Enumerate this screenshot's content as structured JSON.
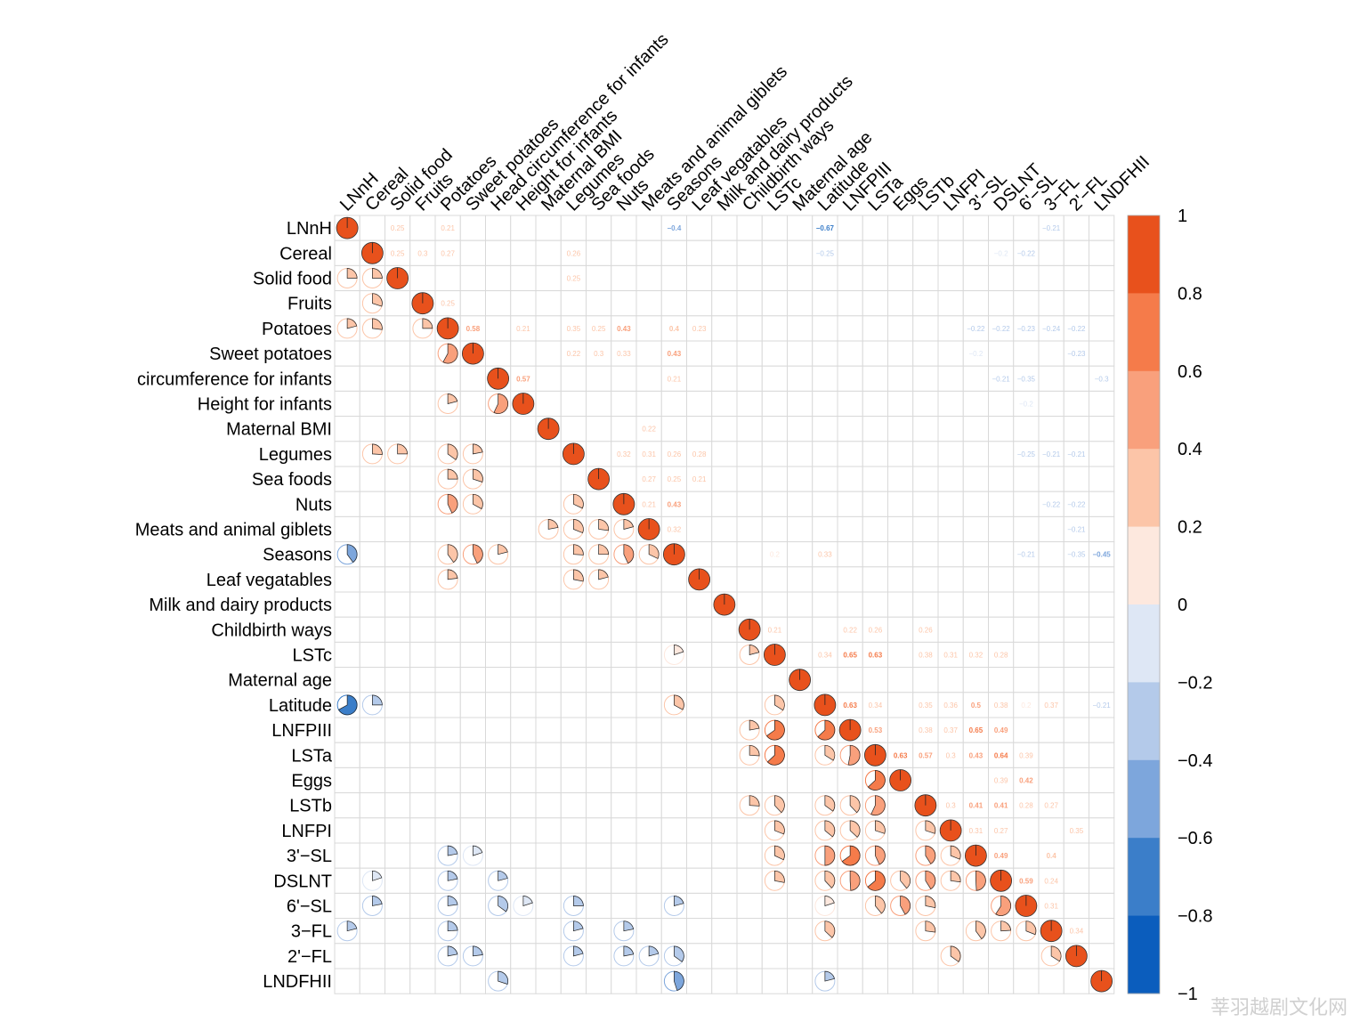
{
  "chart_data": {
    "type": "heatmap",
    "style": "correlation matrix (corrplot mixed: pie glyphs in lower triangle, coefficients in upper triangle)",
    "variables": [
      "LNnH",
      "Cereal",
      "Solid food",
      "Fruits",
      "Potatoes",
      "Sweet potatoes",
      "Head circumference for infants",
      "Height for infants",
      "Maternal BMI",
      "Legumes",
      "Sea foods",
      "Nuts",
      "Meats and animal giblets",
      "Seasons",
      "Leaf vegatables",
      "Milk and dairy products",
      "Childbirth ways",
      "LSTc",
      "Maternal age",
      "Latitude",
      "LNFPIII",
      "LSTa",
      "Eggs",
      "LSTb",
      "LNFPI",
      "3'−SL",
      "DSLNT",
      "6'−SL",
      "3−FL",
      "2'−FL",
      "LNDFHII"
    ],
    "row_labels": [
      "LNnH",
      "Cereal",
      "Solid food",
      "Fruits",
      "Potatoes",
      "Sweet potatoes",
      "circumference for infants",
      "Height for infants",
      "Maternal BMI",
      "Legumes",
      "Sea foods",
      "Nuts",
      "Meats and animal giblets",
      "Seasons",
      "Leaf vegatables",
      "Milk and dairy products",
      "Childbirth ways",
      "LSTc",
      "Maternal age",
      "Latitude",
      "LNFPIII",
      "LSTa",
      "Eggs",
      "LSTb",
      "LNFPI",
      "3'−SL",
      "DSLNT",
      "6'−SL",
      "3−FL",
      "2'−FL",
      "LNDFHII"
    ],
    "correlations": [
      [
        0,
        2,
        0.25
      ],
      [
        0,
        4,
        0.21
      ],
      [
        0,
        13,
        -0.4
      ],
      [
        0,
        19,
        -0.67
      ],
      [
        0,
        28,
        -0.21
      ],
      [
        1,
        2,
        0.25
      ],
      [
        1,
        3,
        0.3
      ],
      [
        1,
        4,
        0.27
      ],
      [
        1,
        9,
        0.26
      ],
      [
        1,
        19,
        -0.25
      ],
      [
        1,
        26,
        -0.2
      ],
      [
        1,
        27,
        -0.22
      ],
      [
        2,
        9,
        0.25
      ],
      [
        3,
        4,
        0.25
      ],
      [
        4,
        5,
        0.58
      ],
      [
        4,
        7,
        0.21
      ],
      [
        4,
        9,
        0.35
      ],
      [
        4,
        10,
        0.25
      ],
      [
        4,
        11,
        0.43
      ],
      [
        4,
        13,
        0.4
      ],
      [
        4,
        14,
        0.23
      ],
      [
        4,
        25,
        -0.22
      ],
      [
        4,
        26,
        -0.22
      ],
      [
        4,
        27,
        -0.23
      ],
      [
        4,
        28,
        -0.24
      ],
      [
        4,
        29,
        -0.22
      ],
      [
        5,
        9,
        0.22
      ],
      [
        5,
        10,
        0.3
      ],
      [
        5,
        11,
        0.33
      ],
      [
        5,
        13,
        0.43
      ],
      [
        5,
        25,
        -0.2
      ],
      [
        5,
        29,
        -0.23
      ],
      [
        6,
        7,
        0.57
      ],
      [
        6,
        13,
        0.21
      ],
      [
        6,
        26,
        -0.21
      ],
      [
        6,
        27,
        -0.35
      ],
      [
        6,
        30,
        -0.3
      ],
      [
        7,
        27,
        -0.2
      ],
      [
        8,
        12,
        0.22
      ],
      [
        9,
        11,
        0.32
      ],
      [
        9,
        12,
        0.31
      ],
      [
        9,
        13,
        0.26
      ],
      [
        9,
        14,
        0.28
      ],
      [
        9,
        27,
        -0.25
      ],
      [
        9,
        28,
        -0.21
      ],
      [
        9,
        29,
        -0.21
      ],
      [
        10,
        12,
        0.27
      ],
      [
        10,
        13,
        0.25
      ],
      [
        10,
        14,
        0.21
      ],
      [
        11,
        12,
        0.21
      ],
      [
        11,
        13,
        0.43
      ],
      [
        11,
        28,
        -0.22
      ],
      [
        11,
        29,
        -0.22
      ],
      [
        12,
        13,
        0.32
      ],
      [
        12,
        29,
        -0.21
      ],
      [
        13,
        17,
        0.2
      ],
      [
        13,
        19,
        0.33
      ],
      [
        13,
        27,
        -0.21
      ],
      [
        13,
        29,
        -0.35
      ],
      [
        13,
        30,
        -0.45
      ],
      [
        16,
        17,
        0.21
      ],
      [
        16,
        20,
        0.22
      ],
      [
        16,
        21,
        0.26
      ],
      [
        16,
        23,
        0.26
      ],
      [
        17,
        19,
        0.34
      ],
      [
        17,
        20,
        0.65
      ],
      [
        17,
        21,
        0.63
      ],
      [
        17,
        23,
        0.38
      ],
      [
        17,
        24,
        0.31
      ],
      [
        17,
        25,
        0.32
      ],
      [
        17,
        26,
        0.28
      ],
      [
        19,
        20,
        0.63
      ],
      [
        19,
        21,
        0.34
      ],
      [
        19,
        23,
        0.35
      ],
      [
        19,
        24,
        0.36
      ],
      [
        19,
        25,
        0.5
      ],
      [
        19,
        26,
        0.38
      ],
      [
        19,
        27,
        0.2
      ],
      [
        19,
        28,
        0.37
      ],
      [
        19,
        30,
        -0.21
      ],
      [
        20,
        21,
        0.53
      ],
      [
        20,
        23,
        0.38
      ],
      [
        20,
        24,
        0.37
      ],
      [
        20,
        25,
        0.65
      ],
      [
        20,
        26,
        0.49
      ],
      [
        21,
        22,
        0.63
      ],
      [
        21,
        23,
        0.57
      ],
      [
        21,
        24,
        0.3
      ],
      [
        21,
        25,
        0.43
      ],
      [
        21,
        26,
        0.64
      ],
      [
        21,
        27,
        0.39
      ],
      [
        22,
        26,
        0.39
      ],
      [
        22,
        27,
        0.42
      ],
      [
        23,
        24,
        0.3
      ],
      [
        23,
        25,
        0.41
      ],
      [
        23,
        26,
        0.41
      ],
      [
        23,
        27,
        0.28
      ],
      [
        23,
        28,
        0.27
      ],
      [
        24,
        25,
        0.31
      ],
      [
        24,
        26,
        0.27
      ],
      [
        24,
        29,
        0.35
      ],
      [
        25,
        26,
        0.49
      ],
      [
        25,
        28,
        0.4
      ],
      [
        26,
        27,
        0.59
      ],
      [
        26,
        28,
        0.24
      ],
      [
        27,
        28,
        0.31
      ],
      [
        28,
        29,
        0.34
      ]
    ],
    "colorbar": {
      "ticks": [
        "1",
        "0.8",
        "0.6",
        "0.4",
        "0.2",
        "0",
        "−0.2",
        "−0.4",
        "−0.6",
        "−0.8",
        "−1"
      ],
      "range": [
        -1,
        1
      ],
      "colors": [
        "#0b5dbd",
        "#3b7ec9",
        "#7da6dc",
        "#b4caea",
        "#dee7f5",
        "#fde8de",
        "#fcc5a8",
        "#f9a07c",
        "#f57b4a",
        "#e8511c"
      ]
    },
    "title": "",
    "xlabel": "",
    "ylabel": ""
  },
  "watermark": "莘羽越剧文化网"
}
